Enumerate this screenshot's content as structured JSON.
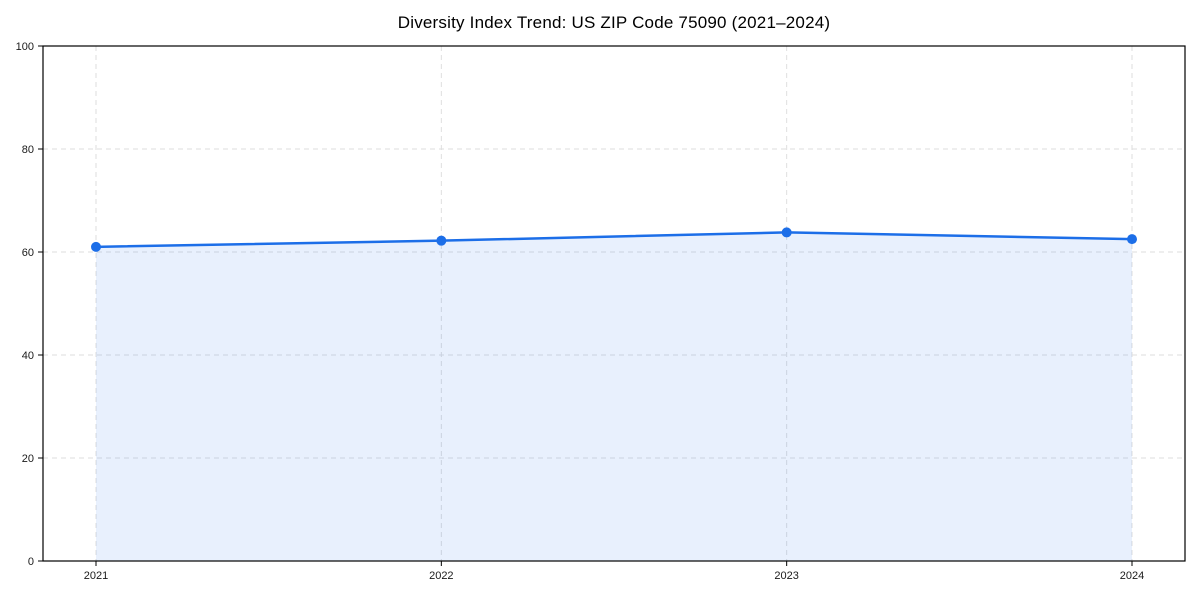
{
  "chart_data": {
    "type": "area",
    "title": "Diversity Index Trend: US ZIP Code 75090 (2021–2024)",
    "categories": [
      "2021",
      "2022",
      "2023",
      "2024"
    ],
    "series": [
      {
        "name": "Diversity Index",
        "values": [
          61.0,
          62.2,
          63.8,
          62.5
        ]
      }
    ],
    "xlabel": "",
    "ylabel": "",
    "ylim": [
      0,
      100
    ],
    "yticks": [
      0,
      20,
      40,
      60,
      80,
      100
    ],
    "grid": true,
    "grid_style": "dashed",
    "legend": false,
    "colors": {
      "line": "#1c6ee8",
      "marker": "#1c6ee8",
      "area_fill": "#1c6ee8",
      "area_fill_opacity": 0.1,
      "grid": "#dedede",
      "axis_frame": "#000000",
      "tick_label": "#1a1a1a",
      "background": "#ffffff"
    }
  }
}
